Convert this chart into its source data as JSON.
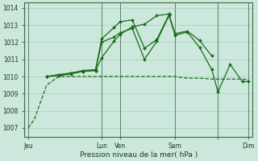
{
  "background_color": "#cce8dc",
  "grid_color": "#aaccbb",
  "line_color": "#1a6b1a",
  "vline_color": "#4a7a5a",
  "title": "Pression niveau de la mer( hPa )",
  "ylim_bottom": 1006.5,
  "ylim_top": 1014.3,
  "yticks": [
    1007,
    1008,
    1009,
    1010,
    1011,
    1012,
    1013,
    1014
  ],
  "xlim_left": -0.3,
  "xlim_right": 18.3,
  "xtick_positions": [
    0,
    6,
    7.5,
    12,
    15.5,
    18
  ],
  "xtick_labels": [
    "Jeu",
    "Lun",
    "Ven",
    "Sam",
    "",
    "Dim"
  ],
  "vline_positions": [
    0,
    6,
    7.5,
    12,
    15.5,
    18
  ],
  "series": [
    {
      "x": [
        0,
        0.5,
        1.5,
        2.5,
        3.5,
        4.5,
        5.5,
        6.0,
        7.0,
        7.5,
        8.5,
        9.5,
        10.5,
        11.5,
        12.0,
        13.0,
        14.0,
        15.0,
        15.5,
        16.5,
        17.5,
        18.0
      ],
      "y": [
        1007.0,
        1007.5,
        1009.5,
        1010.0,
        1010.0,
        1010.0,
        1010.0,
        1010.0,
        1010.0,
        1010.0,
        1010.0,
        1010.0,
        1010.0,
        1010.0,
        1010.0,
        1009.9,
        1009.9,
        1009.85,
        1009.85,
        1009.85,
        1009.85,
        1009.8
      ],
      "marker": null,
      "linestyle": "--",
      "linewidth": 0.9
    },
    {
      "x": [
        1.5,
        2.5,
        3.5,
        4.5,
        5.5,
        6.0,
        7.0,
        7.5,
        8.5,
        9.5,
        10.5,
        11.5,
        12.0,
        13.0,
        14.0,
        15.0,
        15.5,
        16.5,
        17.5,
        18.0
      ],
      "y": [
        1010.0,
        1010.05,
        1010.15,
        1010.3,
        1010.35,
        1012.0,
        1012.3,
        1012.55,
        1012.8,
        1011.0,
        1012.05,
        1013.55,
        1012.4,
        1012.6,
        1011.7,
        1010.4,
        1009.1,
        1010.7,
        1009.7,
        1009.7
      ],
      "marker": "D",
      "linestyle": "-",
      "linewidth": 0.9
    },
    {
      "x": [
        1.5,
        2.5,
        3.5,
        4.5,
        5.5,
        6.0,
        7.0,
        7.5,
        8.5,
        9.5,
        10.5,
        11.5,
        12.0,
        13.0,
        14.0,
        15.0
      ],
      "y": [
        1010.0,
        1010.1,
        1010.2,
        1010.35,
        1010.4,
        1012.2,
        1012.85,
        1013.2,
        1013.3,
        1011.65,
        1012.15,
        1013.6,
        1012.5,
        1012.65,
        1012.1,
        1011.2
      ],
      "marker": "D",
      "linestyle": "-",
      "linewidth": 0.9
    },
    {
      "x": [
        1.5,
        2.5,
        3.5,
        4.5,
        5.5,
        6.0,
        7.0,
        7.5,
        8.5,
        9.5,
        10.5,
        11.5
      ],
      "y": [
        1010.0,
        1010.1,
        1010.2,
        1010.3,
        1010.35,
        1011.1,
        1012.05,
        1012.45,
        1012.9,
        1013.05,
        1013.55,
        1013.65
      ],
      "marker": "D",
      "linestyle": "-",
      "linewidth": 0.9
    }
  ]
}
